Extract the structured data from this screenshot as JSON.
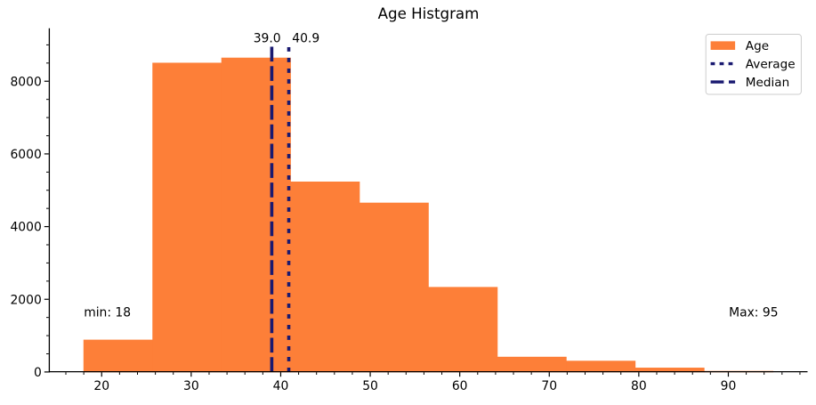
{
  "chart_data": {
    "type": "histogram",
    "title": "Age Histgram",
    "xlabel": "",
    "ylabel": "",
    "series": [
      {
        "name": "Age"
      }
    ],
    "bin_edges": [
      18,
      25.7,
      33.4,
      41.1,
      48.8,
      56.5,
      64.2,
      71.9,
      79.6,
      87.3,
      95
    ],
    "counts": [
      880,
      8500,
      8640,
      5230,
      4650,
      2330,
      410,
      300,
      110,
      20
    ],
    "stats": {
      "median": 39.0,
      "average": 40.9,
      "min": 18,
      "max": 95
    },
    "labels": {
      "median_value": "39.0",
      "average_value": "40.9",
      "min_annotation": "min: 18",
      "max_annotation": "Max: 95"
    },
    "legend": {
      "position": "upper right",
      "entries": [
        {
          "label": "Age",
          "style": "patch"
        },
        {
          "label": "Average",
          "style": "dotted"
        },
        {
          "label": "Median",
          "style": "dashed"
        }
      ]
    },
    "axes": {
      "xlim": [
        14.15,
        98.85
      ],
      "ylim": [
        0,
        9456
      ],
      "xticks": [
        20,
        30,
        40,
        50,
        60,
        70,
        80,
        90
      ],
      "yticks": [
        0,
        2000,
        4000,
        6000,
        8000
      ],
      "x_minor_step": 2,
      "y_minor_step": 500,
      "grid": false
    },
    "colors": {
      "bar": "#fd7f38",
      "line": "#191970",
      "axis": "#000000",
      "text": "#000000",
      "legend_border": "#cccccc",
      "legend_bg": "#ffffff"
    }
  }
}
